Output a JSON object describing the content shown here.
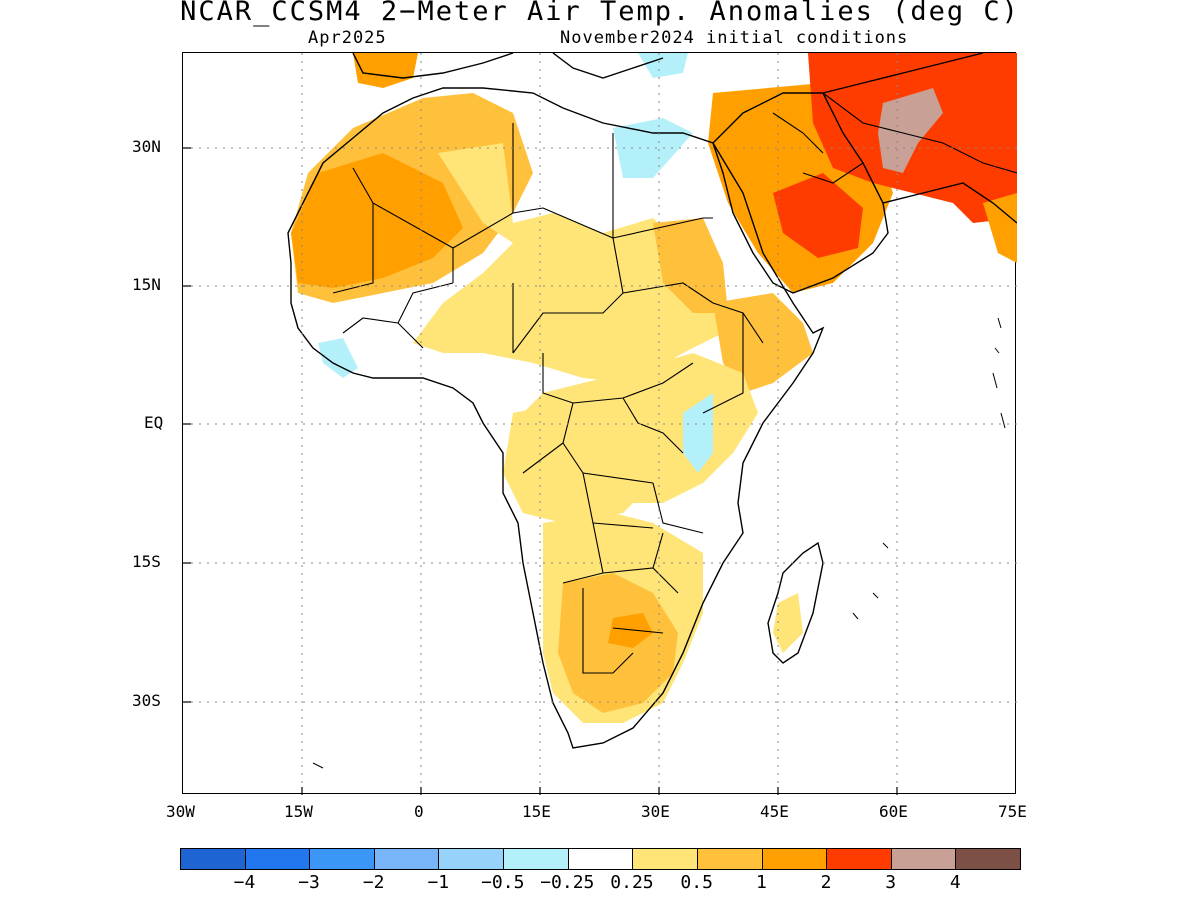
{
  "title": "NCAR_CCSM4 2−Meter Air Temp. Anomalies (deg C)",
  "valid_month": "Apr2025",
  "init_conditions": "November2024 initial conditions",
  "axes": {
    "x_ticks": [
      "30W",
      "15W",
      "0",
      "15E",
      "30E",
      "45E",
      "60E",
      "75E"
    ],
    "y_ticks": [
      "30N",
      "15N",
      "EQ",
      "15S",
      "30S"
    ]
  },
  "legend": {
    "colors": [
      "#1e64d2",
      "#2277ee",
      "#3c96f5",
      "#78b4f8",
      "#96d2fa",
      "#b4f0fa",
      "#ffffff",
      "#ffe478",
      "#ffc03c",
      "#ffa000",
      "#ff3c00",
      "#c8a096",
      "#7d5046"
    ],
    "labels": [
      "−4",
      "−3",
      "−2",
      "−1",
      "−0.5",
      "−0.25",
      "0.25",
      "0.5",
      "1",
      "2",
      "3",
      "4"
    ]
  },
  "colors": {
    "light_yellow": "#ffe478",
    "light_orange": "#ffc03c",
    "orange": "#ffa000",
    "red": "#ff3c00",
    "brown_pink": "#c8a096",
    "light_blue": "#b4f0fa",
    "blue": "#96d2fa"
  }
}
